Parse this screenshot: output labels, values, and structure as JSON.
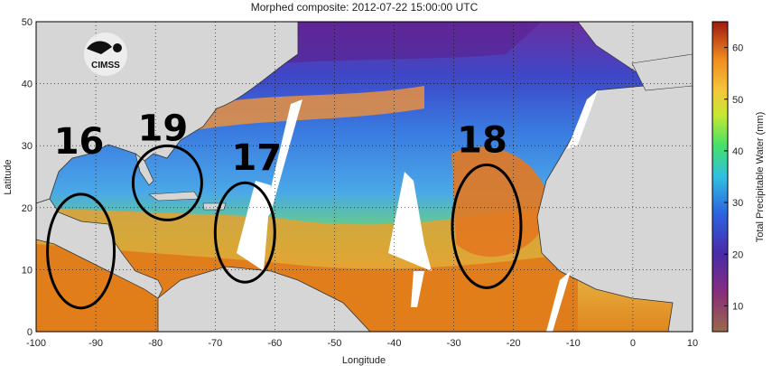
{
  "title": "Morphed composite: 2012-07-22 15:00:00 UTC",
  "map": {
    "lon_range": [
      -100,
      10
    ],
    "lat_range": [
      0,
      50
    ],
    "x_ticks": [
      -100,
      -90,
      -80,
      -70,
      -60,
      -50,
      -40,
      -30,
      -20,
      -10,
      0,
      10
    ],
    "y_ticks": [
      0,
      10,
      20,
      30,
      40,
      50
    ],
    "xlabel": "Longitude",
    "ylabel": "Latitude",
    "grid": "dotted"
  },
  "colorbar": {
    "label": "Total Precipitable Water (mm)",
    "ticks": [
      10,
      20,
      30,
      40,
      50,
      60
    ],
    "range": [
      5,
      65
    ]
  },
  "logo_text": "CIMSS",
  "storm_markers": [
    {
      "label": "16",
      "center_lon": -92.5,
      "center_lat": 13
    },
    {
      "label": "19",
      "center_lon": -78,
      "center_lat": 24
    },
    {
      "label": "17",
      "center_lon": -65,
      "center_lat": 16
    },
    {
      "label": "18",
      "center_lon": -24.5,
      "center_lat": 17
    }
  ]
}
